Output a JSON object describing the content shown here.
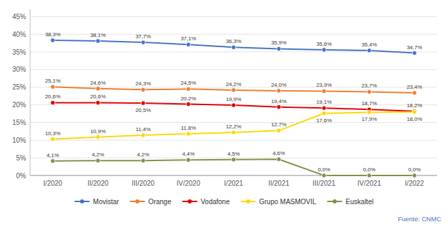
{
  "chart_data": {
    "type": "line",
    "categories": [
      "I/2020",
      "II/2020",
      "III/2020",
      "IV/2020",
      "I/2021",
      "II/2021",
      "III/2021",
      "IV/2021",
      "I/2022"
    ],
    "series": [
      {
        "name": "Movistar",
        "color": "#4472C4",
        "marker": "circle",
        "values": [
          38.3,
          38.1,
          37.7,
          37.1,
          36.3,
          35.9,
          35.6,
          35.4,
          34.7
        ],
        "value_labels": [
          "38,3%",
          "38,1%",
          "37,7%",
          "37,1%",
          "36,3%",
          "35,9%",
          "35,6%",
          "35,4%",
          "34,7%"
        ]
      },
      {
        "name": "Orange",
        "color": "#ED7D31",
        "marker": "circle",
        "values": [
          25.1,
          24.6,
          24.3,
          24.5,
          24.2,
          24.0,
          23.9,
          23.7,
          23.4
        ],
        "value_labels": [
          "25,1%",
          "24,6%",
          "24,3%",
          "24,5%",
          "24,2%",
          "24,0%",
          "23,9%",
          "23,7%",
          "23,4%"
        ]
      },
      {
        "name": "Vodafone",
        "color": "#E00000",
        "marker": "circle",
        "values": [
          20.6,
          20.6,
          20.5,
          20.2,
          19.9,
          19.4,
          19.1,
          18.7,
          18.2
        ],
        "value_labels": [
          "20,6%",
          "20,6%",
          "20,5%",
          "20,2%",
          "19,9%",
          "19,4%",
          "19,1%",
          "18,7%",
          "18,2%"
        ]
      },
      {
        "name": "Grupo MASMOVIL",
        "color": "#FFD700",
        "marker": "circle",
        "values": [
          10.3,
          10.9,
          11.4,
          11.8,
          12.2,
          12.7,
          17.6,
          17.9,
          18.0
        ],
        "value_labels": [
          "10,3%",
          "10,9%",
          "11,4%",
          "11,8%",
          "12,2%",
          "12,7%",
          "17,6%",
          "17,9%",
          "18,0%"
        ]
      },
      {
        "name": "Euskaltel",
        "color": "#8B8B4A",
        "marker": "circle",
        "values": [
          4.1,
          4.2,
          4.2,
          4.4,
          4.5,
          4.6,
          0.0,
          0.0,
          0.0
        ],
        "value_labels": [
          "4,1%",
          "4,2%",
          "4,2%",
          "4,4%",
          "4,5%",
          "4,6%",
          "0,0%",
          "0,0%",
          "0,0%"
        ]
      }
    ],
    "ylim": [
      0,
      47
    ],
    "yticks": [
      {
        "value": 0,
        "label": "0%"
      },
      {
        "value": 5,
        "label": "5%"
      },
      {
        "value": 10,
        "label": "10%"
      },
      {
        "value": 15,
        "label": "15%"
      },
      {
        "value": 20,
        "label": "20%"
      },
      {
        "value": 25,
        "label": "25%"
      },
      {
        "value": 30,
        "label": "30%"
      },
      {
        "value": 35,
        "label": "35%"
      },
      {
        "value": 40,
        "label": "40%"
      },
      {
        "value": 45,
        "label": "45%"
      }
    ],
    "grid": true,
    "legend": "bottom",
    "data_labels": true,
    "annotations": [
      {
        "text": "Fuente: CNMC",
        "color": "#4472C4"
      }
    ]
  }
}
